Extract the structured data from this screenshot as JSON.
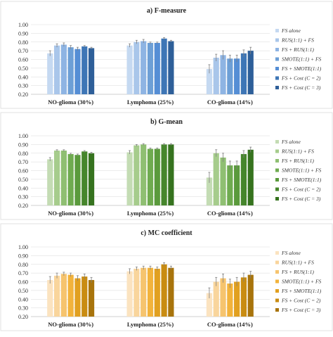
{
  "chart_data": [
    {
      "type": "bar",
      "title": "a) F-measure",
      "categories": [
        "NO-glioma (30%)",
        "Lymphoma (25%)",
        "CO-glioma (14%)"
      ],
      "ylim": [
        0.2,
        1.0
      ],
      "yticks": [
        "0.20",
        "0.30",
        "0.40",
        "0.50",
        "0.60",
        "0.70",
        "0.80",
        "0.90",
        "1.00"
      ],
      "grid": true,
      "legend_position": "right",
      "series": [
        {
          "name": "FS alone",
          "color": "#c5d9f1",
          "values": [
            0.67,
            0.76,
            0.49
          ],
          "errors": [
            0.03,
            0.02,
            0.05
          ]
        },
        {
          "name": "RUS(1:1) + FS",
          "color": "#a9c6ea",
          "values": [
            0.76,
            0.8,
            0.62
          ],
          "errors": [
            0.02,
            0.02,
            0.04
          ]
        },
        {
          "name": "FS + RUS(1:1)",
          "color": "#8eb4e3",
          "values": [
            0.77,
            0.81,
            0.65
          ],
          "errors": [
            0.02,
            0.02,
            0.05
          ]
        },
        {
          "name": "SMOTE(1:1) + FS",
          "color": "#6d9fd6",
          "values": [
            0.74,
            0.79,
            0.61
          ],
          "errors": [
            0.02,
            0.01,
            0.04
          ]
        },
        {
          "name": "FS + SMOTE(1:1)",
          "color": "#558ed5",
          "values": [
            0.72,
            0.79,
            0.61
          ],
          "errors": [
            0.02,
            0.01,
            0.04
          ]
        },
        {
          "name": "FS + Cost (C = 2)",
          "color": "#3e76b6",
          "values": [
            0.75,
            0.84,
            0.67
          ],
          "errors": [
            0.01,
            0.01,
            0.04
          ]
        },
        {
          "name": "FS + Cost (C = 3)",
          "color": "#2e5f99",
          "values": [
            0.73,
            0.81,
            0.7
          ],
          "errors": [
            0.01,
            0.01,
            0.04
          ]
        }
      ]
    },
    {
      "type": "bar",
      "title": "b) G-mean",
      "categories": [
        "NO-glioma (30%)",
        "Lymphoma (25%)",
        "CO-glioma (14%)"
      ],
      "ylim": [
        0.2,
        1.0
      ],
      "yticks": [
        "0.20",
        "0.30",
        "0.40",
        "0.50",
        "0.60",
        "0.70",
        "0.80",
        "0.90",
        "1.00"
      ],
      "grid": true,
      "legend_position": "right",
      "series": [
        {
          "name": "FS alone",
          "color": "#c4dcb4",
          "values": [
            0.73,
            0.81,
            0.52
          ],
          "errors": [
            0.02,
            0.02,
            0.06
          ]
        },
        {
          "name": "RUS(1:1) + FS",
          "color": "#a6cc8c",
          "values": [
            0.83,
            0.89,
            0.8
          ],
          "errors": [
            0.01,
            0.01,
            0.04
          ]
        },
        {
          "name": "FS + RUS(1:1)",
          "color": "#8fbf72",
          "values": [
            0.83,
            0.9,
            0.75
          ],
          "errors": [
            0.01,
            0.01,
            0.05
          ]
        },
        {
          "name": "SMOTE(1:1) + FS",
          "color": "#6fab50",
          "values": [
            0.79,
            0.85,
            0.66
          ],
          "errors": [
            0.01,
            0.01,
            0.05
          ]
        },
        {
          "name": "FS + SMOTE(1:1)",
          "color": "#5a9a3c",
          "values": [
            0.78,
            0.85,
            0.66
          ],
          "errors": [
            0.01,
            0.01,
            0.05
          ]
        },
        {
          "name": "FS + Cost (C = 2)",
          "color": "#46862c",
          "values": [
            0.82,
            0.9,
            0.79
          ],
          "errors": [
            0.01,
            0.01,
            0.04
          ]
        },
        {
          "name": "FS + Cost (C = 3)",
          "color": "#36731f",
          "values": [
            0.8,
            0.9,
            0.84
          ],
          "errors": [
            0.01,
            0.01,
            0.03
          ]
        }
      ]
    },
    {
      "type": "bar",
      "title": "c) MC coefficient",
      "categories": [
        "NO-glioma (30%)",
        "Lymphoma (25%)",
        "CO-glioma (14%)"
      ],
      "ylim": [
        0.2,
        1.0
      ],
      "yticks": [
        "0.20",
        "0.30",
        "0.40",
        "0.50",
        "0.60",
        "0.70",
        "0.80",
        "0.90",
        "1.00"
      ],
      "grid": true,
      "legend_position": "right",
      "series": [
        {
          "name": "FS alone",
          "color": "#fbe3c0",
          "values": [
            0.62,
            0.72,
            0.47
          ],
          "errors": [
            0.04,
            0.03,
            0.06
          ]
        },
        {
          "name": "RUS(1:1) + FS",
          "color": "#f9d59c",
          "values": [
            0.67,
            0.75,
            0.6
          ],
          "errors": [
            0.03,
            0.02,
            0.05
          ]
        },
        {
          "name": "FS + RUS(1:1)",
          "color": "#f6c46e",
          "values": [
            0.69,
            0.76,
            0.64
          ],
          "errors": [
            0.02,
            0.02,
            0.05
          ]
        },
        {
          "name": "SMOTE(1:1) + FS",
          "color": "#f2b33c",
          "values": [
            0.68,
            0.76,
            0.58
          ],
          "errors": [
            0.02,
            0.02,
            0.05
          ]
        },
        {
          "name": "FS + SMOTE(1:1)",
          "color": "#e1a020",
          "values": [
            0.64,
            0.75,
            0.6
          ],
          "errors": [
            0.03,
            0.02,
            0.05
          ]
        },
        {
          "name": "FS + Cost (C = 2)",
          "color": "#c98c12",
          "values": [
            0.66,
            0.8,
            0.65
          ],
          "errors": [
            0.03,
            0.02,
            0.05
          ]
        },
        {
          "name": "FS + Cost (C = 3)",
          "color": "#a8740c",
          "values": [
            0.62,
            0.76,
            0.68
          ],
          "errors": [
            0.03,
            0.02,
            0.04
          ]
        }
      ]
    }
  ]
}
